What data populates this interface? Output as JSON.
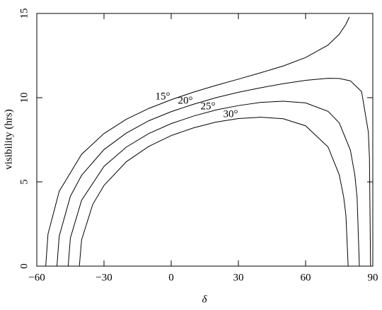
{
  "chart_data": {
    "type": "line",
    "xlabel": "δ",
    "ylabel": "visibility (hrs)",
    "xlim": [
      -60,
      90
    ],
    "ylim": [
      0,
      15
    ],
    "xticks": [
      {
        "value": -60,
        "label": "−60"
      },
      {
        "value": -30,
        "label": "−30"
      },
      0,
      30,
      60,
      90
    ],
    "yticks": [
      0,
      5,
      10,
      15
    ],
    "series": [
      {
        "name": "15°",
        "color": "#000000",
        "x": [
          -56,
          -55,
          -50,
          -40,
          -30,
          -20,
          -10,
          0,
          10,
          20,
          30,
          40,
          50,
          60,
          70,
          75,
          78,
          79.5
        ],
        "values": [
          0,
          1.9,
          4.44,
          6.64,
          7.87,
          8.72,
          9.36,
          9.88,
          10.33,
          10.73,
          11.1,
          11.48,
          11.88,
          12.38,
          13.12,
          13.76,
          14.36,
          14.79
        ]
      },
      {
        "name": "20°",
        "color": "#000000",
        "x": [
          -51,
          -50,
          -45,
          -40,
          -30,
          -20,
          -10,
          0,
          10,
          20,
          30,
          40,
          50,
          60,
          70,
          75,
          80,
          85,
          88,
          88.5,
          89,
          90
        ],
        "values": [
          0,
          1.77,
          4.15,
          5.39,
          6.92,
          7.9,
          8.63,
          9.17,
          9.61,
          10,
          10.32,
          10.59,
          10.83,
          11.03,
          11.15,
          11.14,
          11,
          10.36,
          7.97,
          6.43,
          0,
          0
        ]
      },
      {
        "name": "25°",
        "color": "#000000",
        "x": [
          -46,
          -45,
          -40,
          -30,
          -20,
          -10,
          0,
          10,
          20,
          30,
          40,
          50,
          60,
          70,
          75,
          80,
          82,
          83,
          84,
          90
        ],
        "values": [
          0,
          1.67,
          3.91,
          5.92,
          7.07,
          7.87,
          8.46,
          8.91,
          9.27,
          9.53,
          9.72,
          9.79,
          9.69,
          9.19,
          8.51,
          6.88,
          5.39,
          4.04,
          0,
          0
        ]
      },
      {
        "name": "30°",
        "color": "#000000",
        "x": [
          -41,
          -40,
          -35,
          -30,
          -20,
          -10,
          0,
          10,
          20,
          30,
          40,
          50,
          60,
          70,
          75,
          77,
          78,
          79,
          90
        ],
        "values": [
          0,
          1.56,
          3.67,
          4.79,
          6.2,
          7.11,
          7.75,
          8.21,
          8.55,
          8.76,
          8.84,
          8.75,
          8.33,
          7.08,
          5.43,
          4.1,
          3.01,
          0,
          0
        ]
      }
    ]
  }
}
